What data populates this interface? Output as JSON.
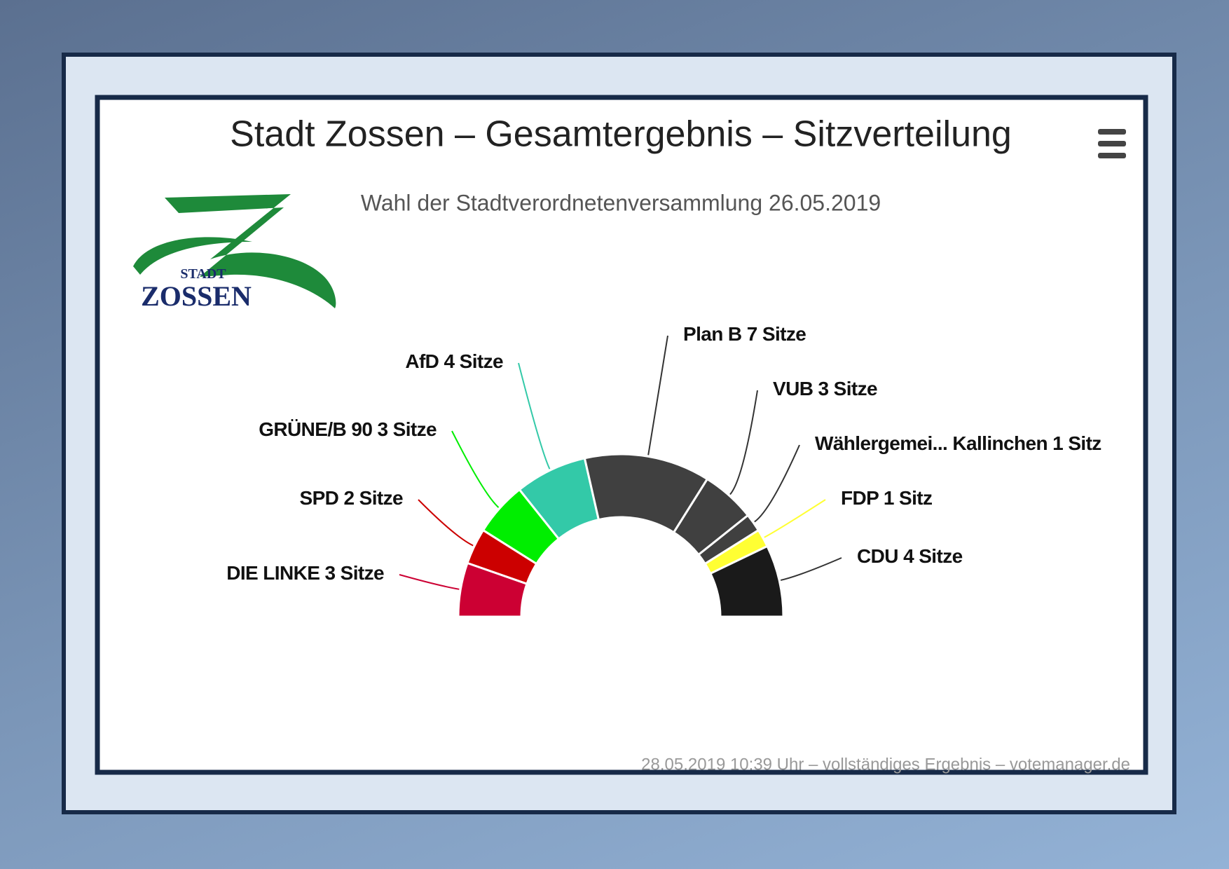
{
  "chart_data": {
    "type": "semi-donut",
    "title": "Stadt Zossen – Gesamtergebnis – Sitzverteilung",
    "subtitle": "Wahl der Stadtverordnetenversammlung 26.05.2019",
    "categories": [
      "DIE LINKE",
      "SPD",
      "GRÜNE/B 90",
      "AfD",
      "Plan B",
      "VUB",
      "Wählergemei... Kallinchen",
      "FDP",
      "CDU"
    ],
    "values": [
      3,
      2,
      3,
      4,
      7,
      3,
      1,
      1,
      4
    ],
    "value_labels": [
      "3 Sitze",
      "2 Sitze",
      "3 Sitze",
      "4 Sitze",
      "7 Sitze",
      "3 Sitze",
      "1 Sitz",
      "1 Sitz",
      "4 Sitze"
    ],
    "colors": [
      "#cc0033",
      "#cc0000",
      "#00ee00",
      "#33c9a8",
      "#404040",
      "#404040",
      "#404040",
      "#ffff33",
      "#1a1a1a"
    ],
    "credits": "28.05.2019 10:39 Uhr – vollständiges Ergebnis – votemanager.de"
  },
  "logo": {
    "top": "STADT",
    "bottom": "ZOSSEN"
  }
}
